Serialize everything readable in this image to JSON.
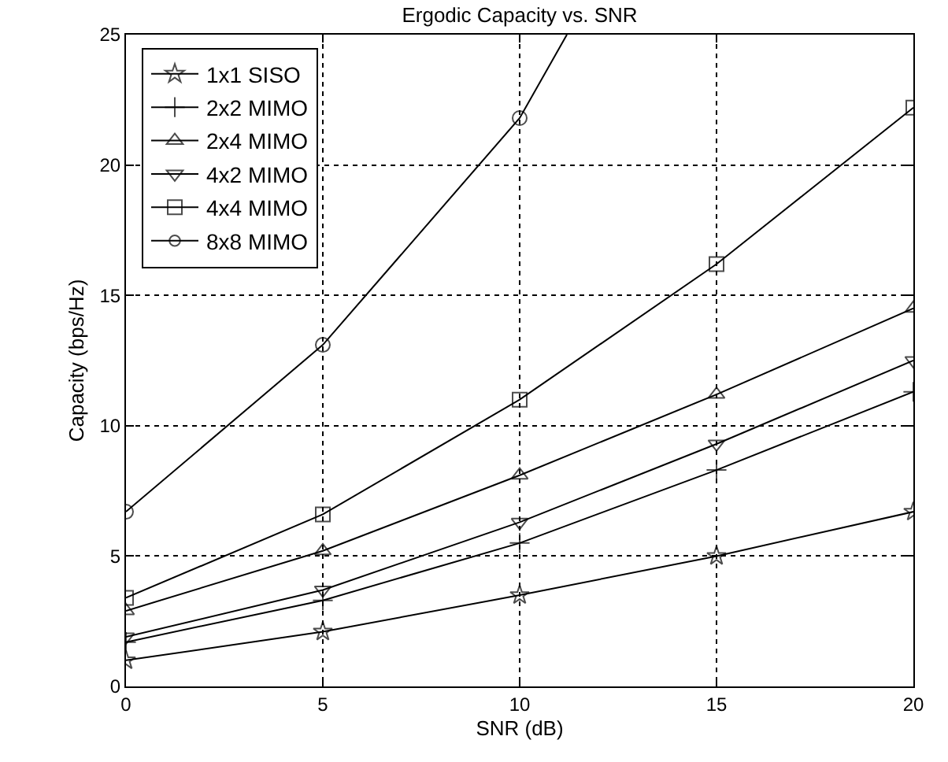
{
  "chart_data": {
    "type": "line",
    "title": "Ergodic Capacity vs. SNR",
    "xlabel": "SNR (dB)",
    "ylabel": "Capacity (bps/Hz)",
    "x": [
      0,
      5,
      10,
      15,
      20
    ],
    "xlim": [
      0,
      20
    ],
    "xticks": [
      0,
      5,
      10,
      15,
      20
    ],
    "ylim": [
      0,
      25
    ],
    "yticks": [
      0,
      5,
      10,
      15,
      20,
      25
    ],
    "grid": true,
    "legend": "top left",
    "line_style": "solid",
    "series": [
      {
        "name": "1x1 SISO",
        "color": "#000000",
        "marker": "star",
        "values": [
          1.0,
          2.1,
          3.5,
          5.0,
          6.7
        ]
      },
      {
        "name": "2x2 MIMO",
        "color": "#000000",
        "marker": "cross",
        "values": [
          1.7,
          3.3,
          5.5,
          8.3,
          11.3
        ]
      },
      {
        "name": "2x4 MIMO",
        "color": "#000000",
        "marker": "triangle",
        "values": [
          2.9,
          5.2,
          8.1,
          11.2,
          14.5
        ]
      },
      {
        "name": "4x2 MIMO",
        "color": "#000000",
        "marker": "triangle-down",
        "values": [
          1.9,
          3.7,
          6.3,
          9.3,
          12.5
        ]
      },
      {
        "name": "4x4 MIMO",
        "color": "#000000",
        "marker": "square",
        "values": [
          3.4,
          6.6,
          11.0,
          16.2,
          22.2
        ]
      },
      {
        "name": "8x8 MIMO",
        "color": "#000000",
        "marker": "circle",
        "x": [
          0,
          5,
          10,
          11.2
        ],
        "values": [
          6.7,
          13.1,
          21.8,
          25
        ]
      }
    ]
  }
}
